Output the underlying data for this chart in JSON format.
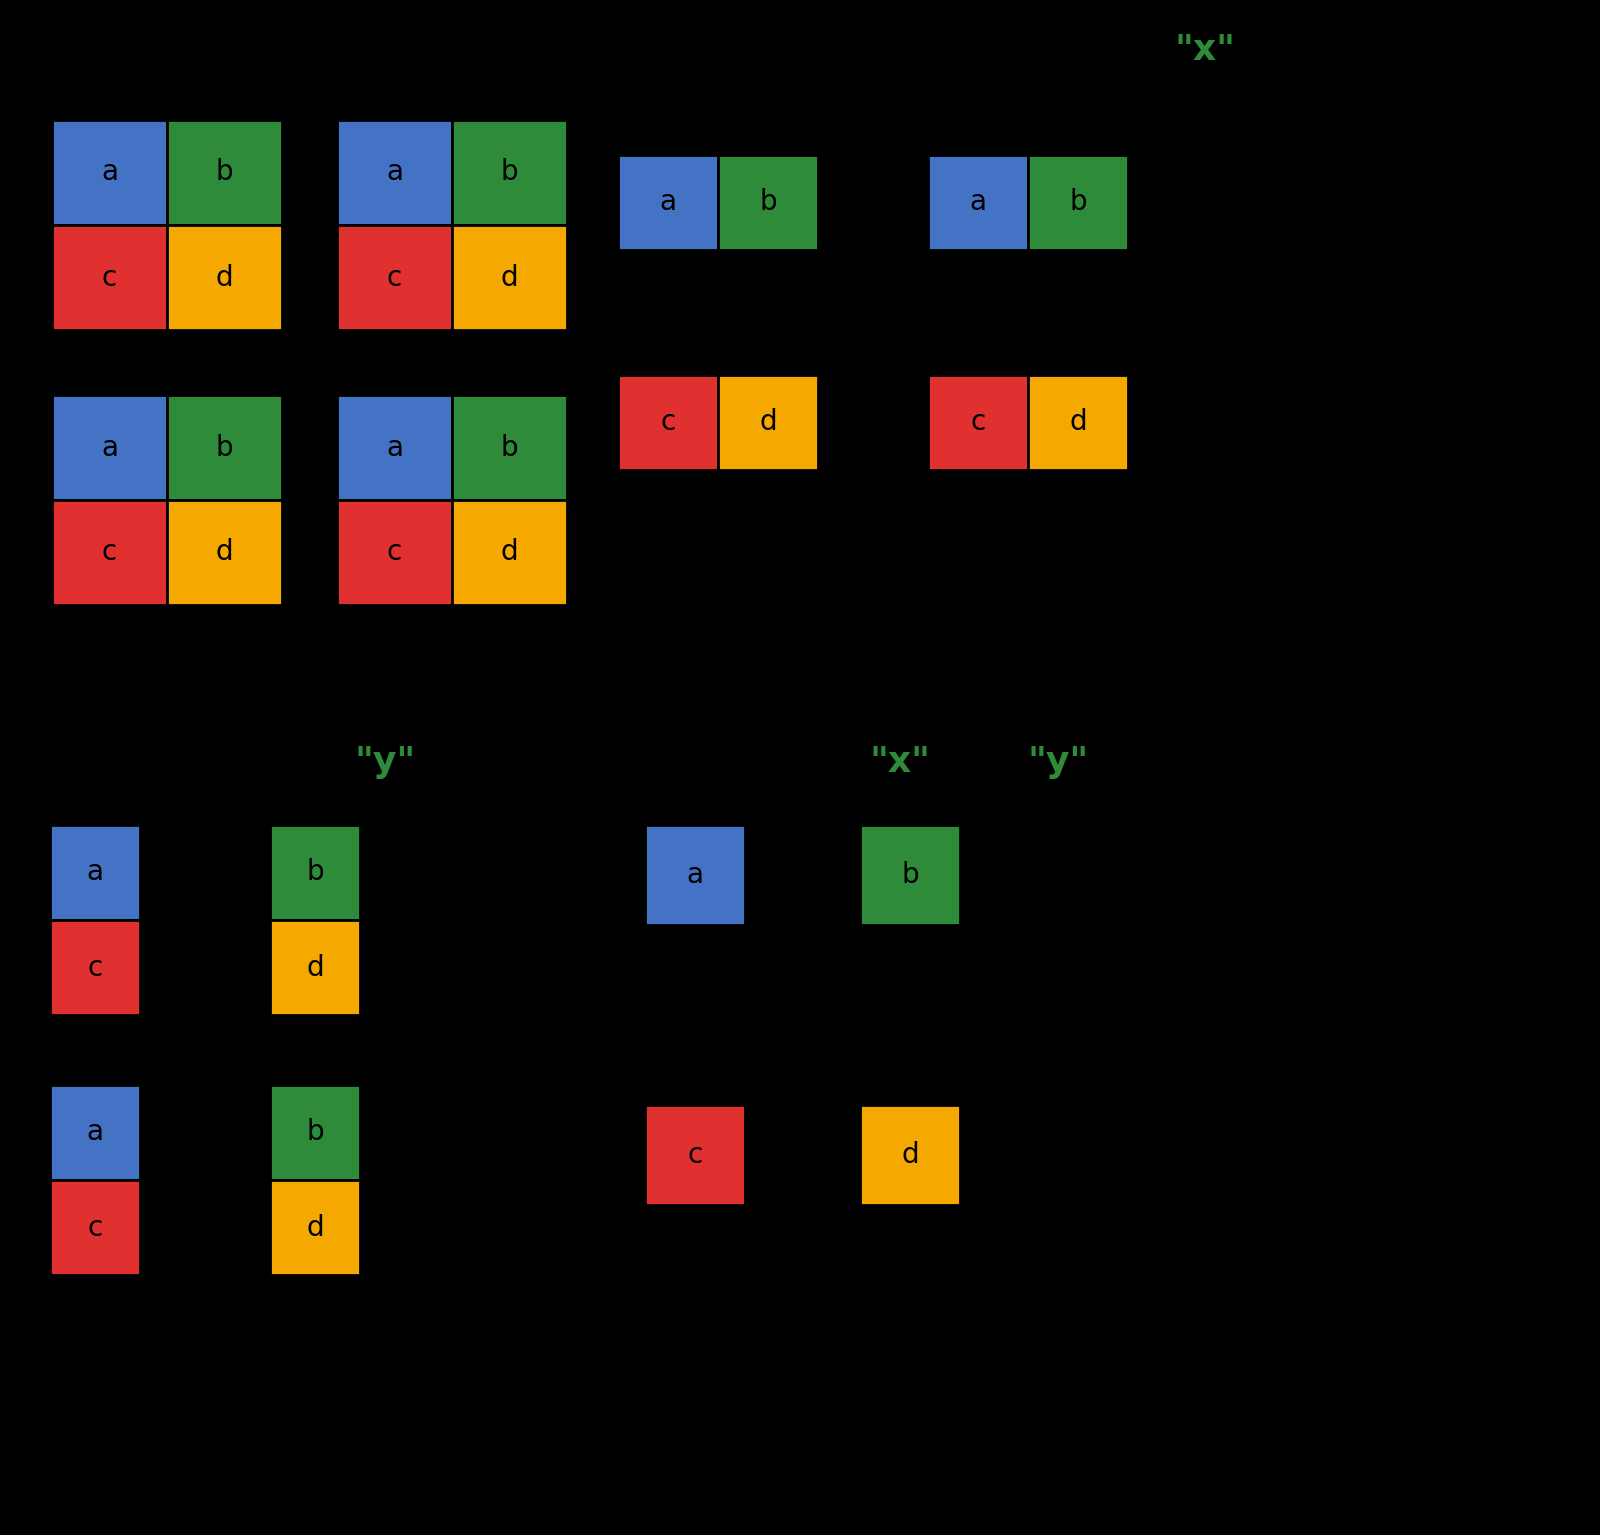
{
  "bg_color": "#000000",
  "cell_color_a": "#4472C4",
  "cell_color_b": "#2E8B3A",
  "cell_color_c": "#E03030",
  "cell_color_d": "#F5A800",
  "label_color": "#2E8B3A",
  "font_size_cell": 20,
  "font_size_label": 26,
  "label_x": "\"x\"",
  "label_y": "\"y\"",
  "label_xy_x": "\"x\"",
  "label_xy_y": "\"y\""
}
